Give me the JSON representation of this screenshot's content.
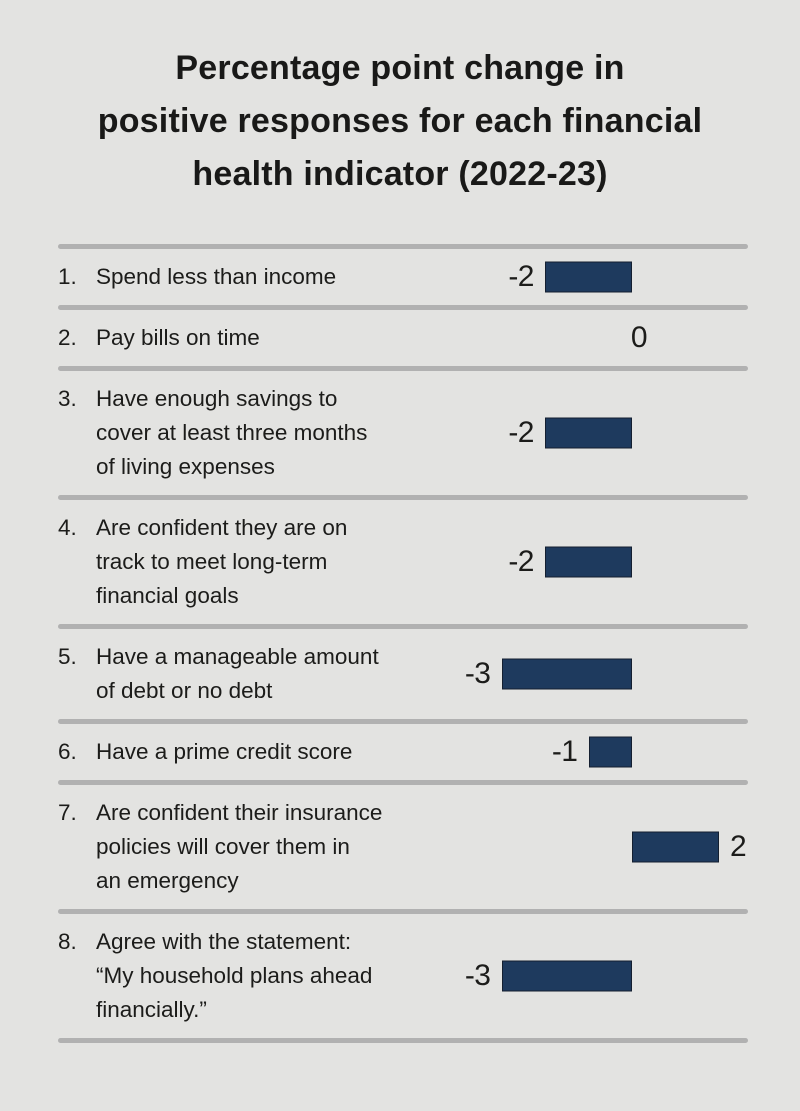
{
  "page": {
    "background_color": "#e3e3e1",
    "divider_color": "#b1b1b1",
    "text_color": "#1c1c1a"
  },
  "title": {
    "lines": [
      "Percentage point change in",
      "positive responses for each financial",
      "health indicator (2022-23)"
    ]
  },
  "chart_data": {
    "type": "bar",
    "orientation": "horizontal",
    "title": "Percentage point change in positive responses for each financial health indicator (2022-23)",
    "value_unit": "percentage points",
    "xlim": [
      -4,
      3
    ],
    "baseline": 0,
    "grid": false,
    "legend": false,
    "bar_color": "#1e3a5e",
    "bar_border_color": "#141f30",
    "categories": [
      "Spend less than income",
      "Pay bills on time",
      "Have enough savings to cover at least three months of living expenses",
      "Are confident they are on track to meet long-term financial goals",
      "Have a manageable amount of debt or no debt",
      "Have a prime credit score",
      "Are confident their insurance policies will cover them in an emergency",
      "Agree with the statement: “My household plans ahead financially.”"
    ],
    "values": [
      -2,
      0,
      -2,
      -2,
      -3,
      -1,
      2,
      -3
    ],
    "rows": [
      {
        "num": "1.",
        "lines": [
          "Spend less than income"
        ],
        "value": -2,
        "value_label": "-2"
      },
      {
        "num": "2.",
        "lines": [
          "Pay bills on time"
        ],
        "value": 0,
        "value_label": "0"
      },
      {
        "num": "3.",
        "lines": [
          "Have enough savings to",
          "cover at least three months",
          "of living expenses"
        ],
        "value": -2,
        "value_label": "-2"
      },
      {
        "num": "4.",
        "lines": [
          "Are confident they are on",
          "track to meet long-term",
          "financial goals"
        ],
        "value": -2,
        "value_label": "-2"
      },
      {
        "num": "5.",
        "lines": [
          "Have a manageable amount",
          "of debt or no debt"
        ],
        "value": -3,
        "value_label": "-3"
      },
      {
        "num": "6.",
        "lines": [
          "Have a prime credit score"
        ],
        "value": -1,
        "value_label": "-1"
      },
      {
        "num": "7.",
        "lines": [
          "Are confident their insurance",
          "policies will cover them in",
          "an emergency"
        ],
        "value": 2,
        "value_label": "2"
      },
      {
        "num": "8.",
        "lines": [
          "Agree with the statement:",
          "“My household plans ahead",
          "financially.”"
        ],
        "value": -3,
        "value_label": "-3"
      }
    ]
  }
}
